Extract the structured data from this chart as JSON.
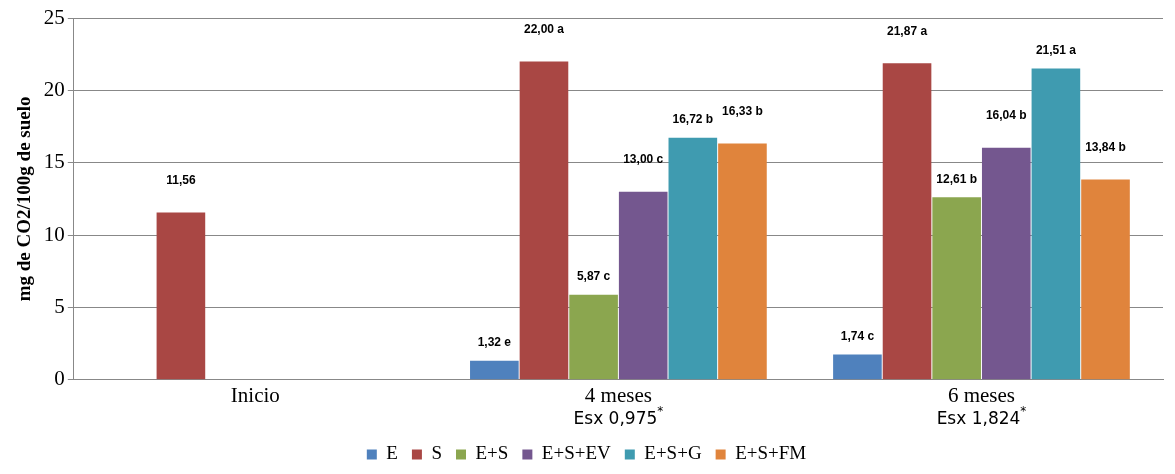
{
  "chart_data": {
    "type": "bar",
    "ylabel": "mg de CO2/100g de suelo",
    "categories": [
      "Inicio",
      "4 meses",
      "6 meses"
    ],
    "series": [
      {
        "name": "E",
        "color": "#4f81bd",
        "values": [
          null,
          1.32,
          1.74
        ],
        "value_labels": [
          null,
          "1,32 e",
          "1,74 c"
        ]
      },
      {
        "name": "S",
        "color": "#a94744",
        "values": [
          11.56,
          22.0,
          21.87
        ],
        "value_labels": [
          "11,56",
          "22,00 a",
          "21,87 a"
        ]
      },
      {
        "name": "E+S",
        "color": "#8ba64f",
        "values": [
          null,
          5.87,
          12.61
        ],
        "value_labels": [
          null,
          "5,87 c",
          "12,61 b"
        ]
      },
      {
        "name": "E+S+EV",
        "color": "#74578f",
        "values": [
          null,
          13.0,
          16.04
        ],
        "value_labels": [
          null,
          "13,00 c",
          "16,04 b"
        ]
      },
      {
        "name": "E+S+G",
        "color": "#3f9bb0",
        "values": [
          null,
          16.72,
          21.51
        ],
        "value_labels": [
          null,
          "16,72 b",
          "21,51 a"
        ]
      },
      {
        "name": "E+S+FM",
        "color": "#e0843c",
        "values": [
          null,
          16.33,
          13.84
        ],
        "value_labels": [
          null,
          "16,33 b",
          "13,84 b"
        ]
      }
    ],
    "ylim": [
      0,
      25
    ],
    "yticks": [
      0,
      5,
      10,
      15,
      20,
      25
    ],
    "grid": "y",
    "legend": "bottom",
    "annotations": [
      "Esx 0,975$^{*}$",
      "Esx 1,824$^{*}$"
    ]
  }
}
